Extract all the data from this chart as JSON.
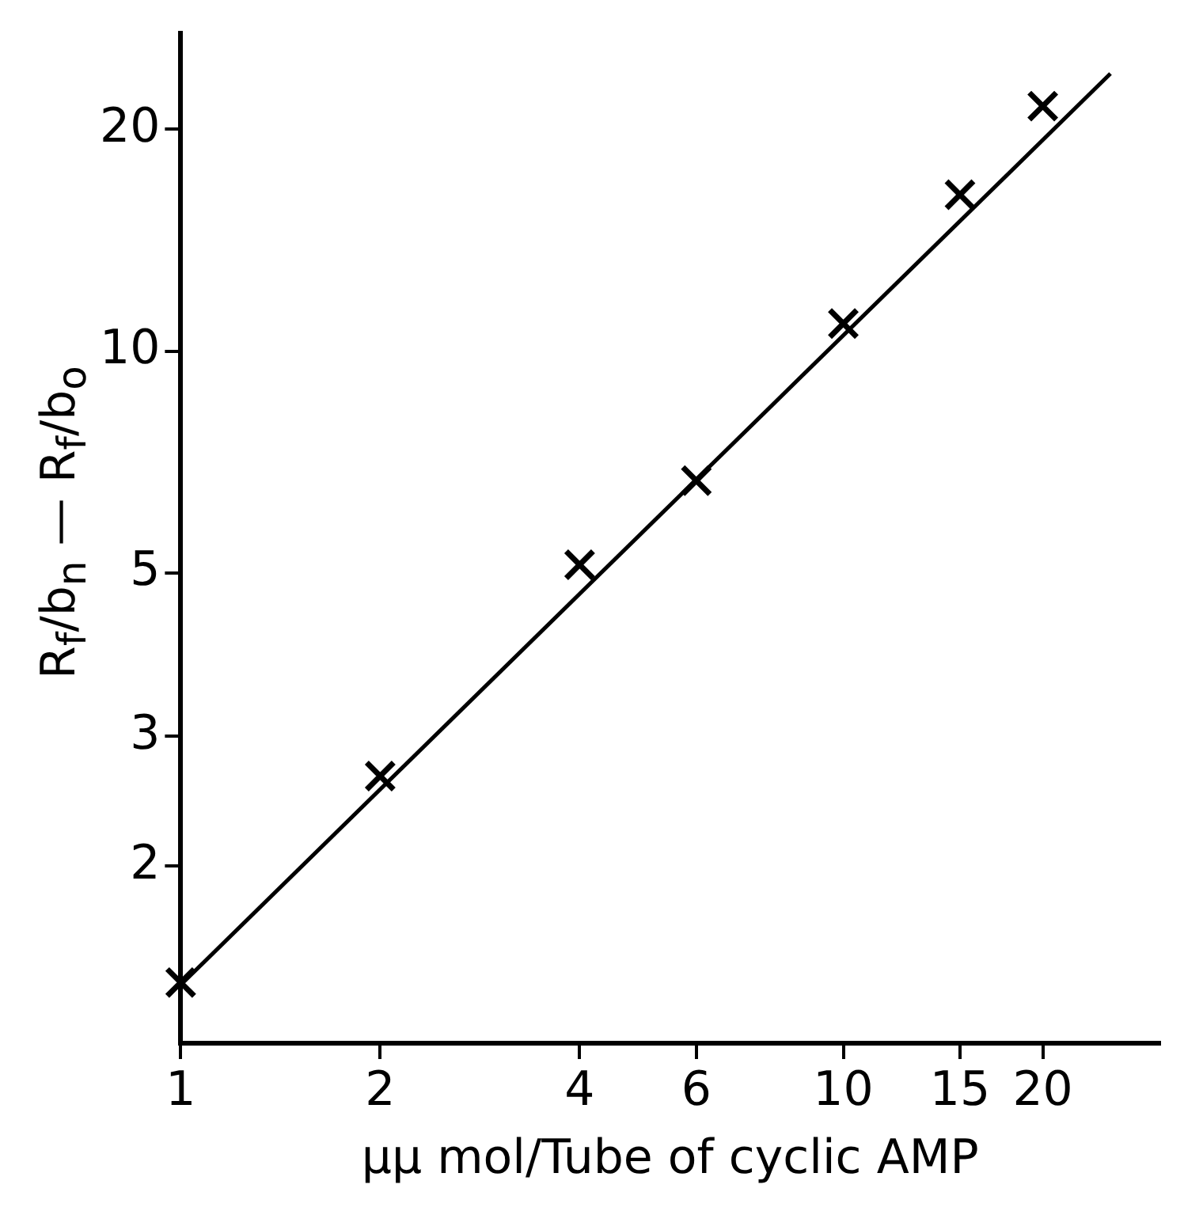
{
  "chart_data": {
    "type": "scatter",
    "xlabel": "μμ mol/Tube of cyclic AMP",
    "ylabel": "R$_{f}$/b$_{n}$ — R$_{f}$/b$_{o}$",
    "log": "xy",
    "grid": false,
    "legend": false,
    "marker": "cross",
    "xlim": [
      1,
      30
    ],
    "ylim": [
      1.15,
      27
    ],
    "xticks": [
      1,
      2,
      4,
      6,
      10,
      15,
      20
    ],
    "yticks": [
      2,
      3,
      5,
      10,
      20
    ],
    "x": [
      1,
      2,
      4,
      6,
      10,
      15,
      20
    ],
    "series": [
      {
        "color": "#000000",
        "values": [
          1.39,
          2.65,
          5.13,
          6.67,
          10.9,
          16.3,
          21.5
        ]
      },
      {
        "type": "line",
        "color": "#000000",
        "x": [
          1,
          25.3
        ],
        "values": [
          1.38,
          23.8
        ],
        "marker": "none",
        "line_style": "solid"
      }
    ]
  }
}
